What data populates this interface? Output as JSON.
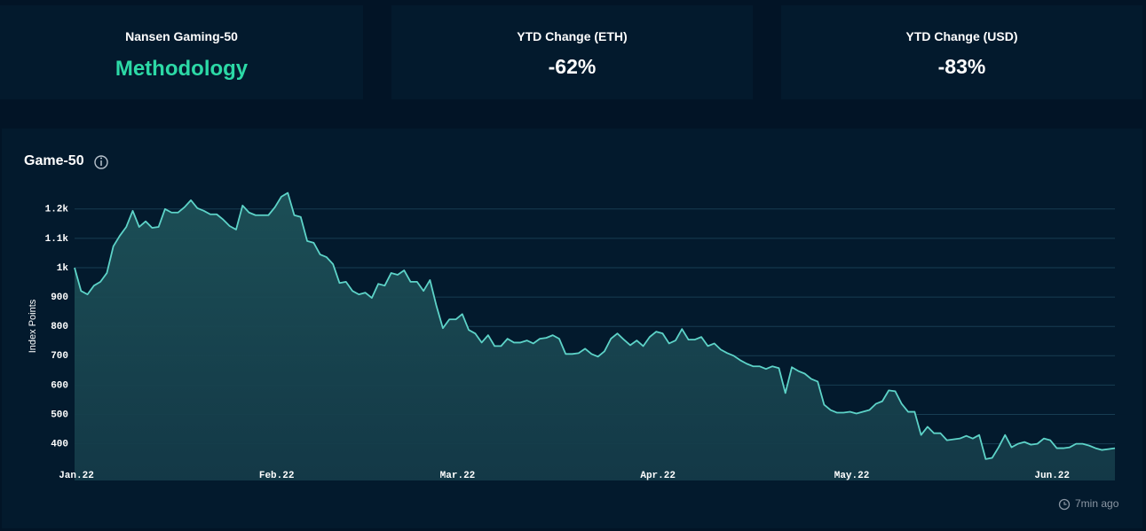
{
  "cards": [
    {
      "label": "Nansen Gaming-50",
      "value": "Methodology"
    },
    {
      "label": "YTD Change (ETH)",
      "value": "-62%"
    },
    {
      "label": "YTD Change (USD)",
      "value": "-83%"
    }
  ],
  "chart_data": {
    "type": "area",
    "title": "Game-50",
    "y_label": "Index Points",
    "color": "#5dd3c8",
    "x": [
      0,
      1,
      2,
      3,
      4,
      5,
      6,
      7,
      8,
      9,
      10,
      11,
      12,
      13,
      14,
      15,
      16,
      17,
      18,
      19,
      20,
      21,
      22,
      23,
      24,
      25,
      26,
      27,
      28,
      29,
      30,
      31,
      32,
      33,
      34,
      35,
      36,
      37,
      38,
      39,
      40,
      41,
      42,
      43,
      44,
      45,
      46,
      47,
      48,
      49,
      50,
      51,
      52,
      53,
      54,
      55,
      56,
      57,
      58,
      59,
      60,
      61,
      62,
      63,
      64,
      65,
      66,
      67,
      68,
      69,
      70,
      71,
      72,
      73,
      74,
      75,
      76,
      77,
      78,
      79,
      80,
      81,
      82,
      83,
      84,
      85,
      86,
      87,
      88,
      89,
      90,
      91,
      92,
      93,
      94,
      95,
      96,
      97,
      98,
      99,
      100,
      101,
      102,
      103,
      104,
      105,
      106,
      107,
      108,
      109,
      110,
      111,
      112,
      113,
      114,
      115,
      116,
      117,
      118,
      119,
      120,
      121,
      122,
      123,
      124,
      125,
      126,
      127,
      128,
      129,
      130,
      131,
      132,
      133,
      134,
      135,
      136,
      137,
      138,
      139,
      140,
      141,
      142,
      143,
      144,
      145,
      146,
      147,
      148,
      149,
      150,
      151,
      152,
      153,
      154,
      155,
      156,
      157,
      158,
      159,
      160,
      161
    ],
    "values": [
      1000,
      921,
      909,
      939,
      952,
      982,
      1073,
      1109,
      1139,
      1194,
      1139,
      1158,
      1136,
      1139,
      1200,
      1188,
      1188,
      1206,
      1230,
      1203,
      1194,
      1182,
      1182,
      1164,
      1142,
      1130,
      1212,
      1188,
      1179,
      1179,
      1179,
      1206,
      1242,
      1255,
      1179,
      1173,
      1091,
      1085,
      1045,
      1036,
      1012,
      948,
      952,
      921,
      909,
      915,
      897,
      945,
      939,
      982,
      976,
      991,
      952,
      952,
      921,
      958,
      870,
      794,
      824,
      824,
      842,
      788,
      776,
      745,
      770,
      733,
      733,
      758,
      745,
      745,
      752,
      742,
      758,
      761,
      770,
      758,
      706,
      706,
      709,
      724,
      706,
      697,
      715,
      758,
      776,
      755,
      736,
      752,
      733,
      764,
      782,
      776,
      742,
      752,
      791,
      755,
      755,
      764,
      733,
      742,
      721,
      709,
      700,
      685,
      673,
      664,
      664,
      655,
      664,
      658,
      573,
      661,
      648,
      639,
      621,
      612,
      533,
      515,
      506,
      506,
      509,
      503,
      509,
      515,
      536,
      545,
      582,
      579,
      536,
      509,
      509,
      430,
      458,
      436,
      436,
      412,
      415,
      418,
      427,
      418,
      430,
      348,
      352,
      388,
      430,
      388,
      400,
      406,
      397,
      400,
      418,
      412,
      385,
      385,
      388,
      400,
      400,
      394,
      385,
      379,
      382,
      385
    ],
    "xlim": [
      0,
      161
    ],
    "xticks": [
      {
        "value": 0,
        "label": "Jan.22"
      },
      {
        "value": 31,
        "label": "Feb.22"
      },
      {
        "value": 59,
        "label": "Mar.22"
      },
      {
        "value": 90,
        "label": "Apr.22"
      },
      {
        "value": 120,
        "label": "May.22"
      },
      {
        "value": 151,
        "label": "Jun.22"
      }
    ],
    "ylim": [
      275,
      1290
    ],
    "yticks": [
      400,
      500,
      600,
      700,
      800,
      900,
      {
        "value": 1000,
        "label": "1k"
      },
      {
        "value": 1100,
        "label": "1.1k"
      },
      {
        "value": 1200,
        "label": "1.2k"
      }
    ],
    "grid": true
  },
  "footer": "7min ago"
}
